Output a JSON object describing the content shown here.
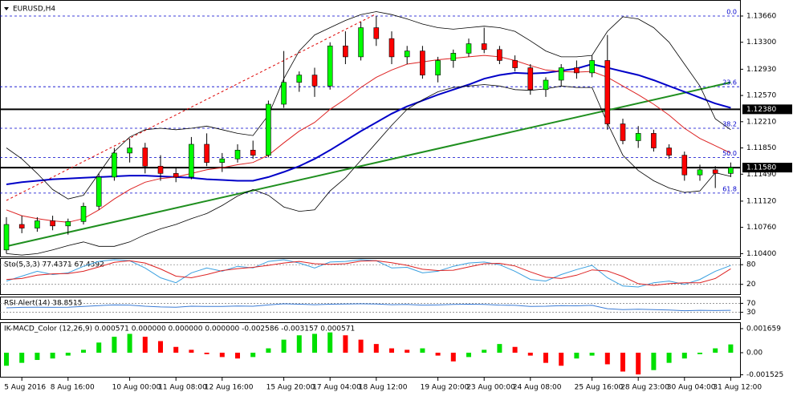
{
  "chart_data": [
    {
      "type": "candlestick",
      "title": "EURUSD,H4",
      "categories": [
        null,
        "5 Aug 2016",
        null,
        null,
        "8 Aug 16:00",
        null,
        null,
        null,
        "10 Aug 00:00",
        null,
        null,
        "11 Aug 08:00",
        null,
        null,
        "12 Aug 16:00",
        null,
        null,
        null,
        "15 Aug 20:00",
        null,
        null,
        "17 Aug 04:00",
        null,
        null,
        "18 Aug 12:00",
        null,
        null,
        null,
        "19 Aug 20:00",
        null,
        null,
        "23 Aug 00:00",
        null,
        null,
        "24 Aug 08:00",
        null,
        null,
        null,
        "25 Aug 16:00",
        null,
        null,
        "28 Aug 23:00",
        null,
        null,
        "30 Aug 04:00",
        null,
        null,
        "31 Aug 12:00"
      ],
      "open": [
        1.1045,
        1.108,
        1.1075,
        1.1085,
        1.1078,
        1.1084,
        1.1105,
        1.1145,
        1.1178,
        1.1185,
        1.116,
        1.115,
        1.1145,
        1.119,
        1.1165,
        1.117,
        1.1182,
        1.1175,
        1.1245,
        1.1275,
        1.1285,
        1.127,
        1.1325,
        1.131,
        1.135,
        1.1335,
        1.131,
        1.1318,
        1.1285,
        1.1305,
        1.1315,
        1.1328,
        1.132,
        1.1305,
        1.1295,
        1.1265,
        1.1278,
        1.1295,
        1.1288,
        1.1305,
        1.1218,
        1.1195,
        1.1205,
        1.1185,
        1.1175,
        1.1148,
        1.1155,
        1.115
      ],
      "high": [
        1.109,
        1.1092,
        1.109,
        1.1092,
        1.1088,
        1.111,
        1.115,
        1.1185,
        1.1198,
        1.1192,
        1.1175,
        1.1158,
        1.12,
        1.1205,
        1.1178,
        1.119,
        1.1195,
        1.125,
        1.1318,
        1.129,
        1.1295,
        1.133,
        1.1345,
        1.1358,
        1.1366,
        1.1345,
        1.1325,
        1.1325,
        1.131,
        1.132,
        1.1335,
        1.135,
        1.1325,
        1.1312,
        1.13,
        1.1282,
        1.13,
        1.1305,
        1.1312,
        1.134,
        1.1225,
        1.1215,
        1.121,
        1.119,
        1.118,
        1.1162,
        1.116,
        1.1165
      ],
      "low": [
        1.104,
        1.1068,
        1.107,
        1.1072,
        1.1066,
        1.108,
        1.11,
        1.114,
        1.1165,
        1.115,
        1.114,
        1.1138,
        1.1142,
        1.116,
        1.1152,
        1.1165,
        1.117,
        1.1172,
        1.124,
        1.1262,
        1.1255,
        1.1265,
        1.13,
        1.1305,
        1.1325,
        1.13,
        1.13,
        1.128,
        1.1275,
        1.1295,
        1.131,
        1.1315,
        1.13,
        1.129,
        1.1258,
        1.1255,
        1.127,
        1.128,
        1.1282,
        1.121,
        1.119,
        1.1185,
        1.118,
        1.117,
        1.114,
        1.114,
        1.113,
        1.1145
      ],
      "close": [
        1.108,
        1.1075,
        1.1085,
        1.1078,
        1.1084,
        1.1105,
        1.1145,
        1.1178,
        1.1185,
        1.116,
        1.115,
        1.1145,
        1.119,
        1.1165,
        1.117,
        1.1182,
        1.1175,
        1.1245,
        1.1275,
        1.1285,
        1.127,
        1.1325,
        1.131,
        1.135,
        1.1335,
        1.131,
        1.1318,
        1.1285,
        1.1305,
        1.1315,
        1.1328,
        1.132,
        1.1305,
        1.1295,
        1.1265,
        1.1278,
        1.1295,
        1.1288,
        1.1305,
        1.1218,
        1.1195,
        1.1205,
        1.1185,
        1.1175,
        1.1148,
        1.1155,
        1.115,
        1.1158
      ],
      "up_color": "#00ff00",
      "down_color": "#ff0000",
      "overlays": [
        {
          "color": "#0000c8",
          "width": 2,
          "values": [
            1.1135,
            1.1138,
            1.114,
            1.1142,
            1.1143,
            1.1144,
            1.1145,
            1.1146,
            1.1147,
            1.1147,
            1.1146,
            1.1145,
            1.1144,
            1.1142,
            1.1141,
            1.114,
            1.114,
            1.1145,
            1.1152,
            1.116,
            1.117,
            1.1182,
            1.1195,
            1.1208,
            1.122,
            1.1232,
            1.1242,
            1.125,
            1.1258,
            1.1265,
            1.1272,
            1.128,
            1.1285,
            1.1288,
            1.1287,
            1.1288,
            1.1291,
            1.1294,
            1.13,
            1.1295,
            1.129,
            1.1285,
            1.1278,
            1.127,
            1.1262,
            1.1254,
            1.1246,
            1.124
          ]
        },
        {
          "color": "#dd2222",
          "width": 1,
          "values": [
            1.11,
            1.1092,
            1.1088,
            1.1085,
            1.1083,
            1.1088,
            1.11,
            1.1115,
            1.1128,
            1.1138,
            1.1143,
            1.1145,
            1.115,
            1.1155,
            1.1158,
            1.1162,
            1.1165,
            1.1175,
            1.1192,
            1.1208,
            1.122,
            1.1238,
            1.1252,
            1.1268,
            1.1282,
            1.1292,
            1.13,
            1.1303,
            1.1306,
            1.1308,
            1.131,
            1.1312,
            1.131,
            1.1305,
            1.1298,
            1.1292,
            1.129,
            1.1289,
            1.129,
            1.1282,
            1.127,
            1.1258,
            1.1245,
            1.123,
            1.1212,
            1.1198,
            1.1188,
            1.1178
          ]
        },
        {
          "color": "#000000",
          "width": 0.8,
          "values": [
            1.1185,
            1.117,
            1.115,
            1.1128,
            1.1115,
            1.112,
            1.115,
            1.118,
            1.12,
            1.121,
            1.1212,
            1.121,
            1.1212,
            1.1215,
            1.121,
            1.1205,
            1.1202,
            1.123,
            1.128,
            1.1318,
            1.134,
            1.135,
            1.136,
            1.1368,
            1.1372,
            1.1368,
            1.1362,
            1.1355,
            1.135,
            1.1348,
            1.135,
            1.1352,
            1.135,
            1.1345,
            1.1332,
            1.1318,
            1.131,
            1.131,
            1.1312,
            1.1345,
            1.1365,
            1.1362,
            1.135,
            1.133,
            1.13,
            1.127,
            1.1225,
            1.121
          ]
        },
        {
          "color": "#000000",
          "width": 0.8,
          "values": [
            1.104,
            1.1038,
            1.104,
            1.1045,
            1.1051,
            1.1056,
            1.105,
            1.105,
            1.1056,
            1.1066,
            1.1074,
            1.108,
            1.1088,
            1.1095,
            1.1106,
            1.1119,
            1.1128,
            1.112,
            1.1104,
            1.1098,
            1.11,
            1.1126,
            1.1144,
            1.1168,
            1.1192,
            1.1216,
            1.1238,
            1.1251,
            1.1262,
            1.1268,
            1.127,
            1.1272,
            1.127,
            1.1265,
            1.1264,
            1.1266,
            1.127,
            1.1268,
            1.1268,
            1.1219,
            1.1175,
            1.1154,
            1.114,
            1.113,
            1.1124,
            1.1126,
            1.1151,
            1.1146
          ]
        }
      ],
      "trendlines": [
        {
          "color": "#1f8f1f",
          "from": 0,
          "to": 47,
          "values": [
            1.105,
            1.1275
          ]
        },
        {
          "color": "#dd0000",
          "dashed": true,
          "from": 0,
          "to": 24,
          "values": [
            1.1113,
            1.1369
          ]
        }
      ],
      "fibonacci": {
        "color": "#0000cc",
        "levels": [
          {
            "value": 1.1366,
            "label": "0.0"
          },
          {
            "value": 1.1269,
            "label": "23.6"
          },
          {
            "value": 1.1212,
            "label": "38.2"
          },
          {
            "value": 1.1172,
            "label": "50.0"
          },
          {
            "value": 1.1123,
            "label": "61.8"
          }
        ]
      },
      "levels": [
        {
          "value": 1.1238,
          "label": "1.12380"
        },
        {
          "value": 1.1158,
          "label": "1.11580"
        }
      ],
      "ylim": [
        1.1036,
        1.1388
      ],
      "yticks": [
        {
          "value": 1.1366,
          "label": "1.13660"
        },
        {
          "value": 1.133,
          "label": "1.13300"
        },
        {
          "value": 1.1293,
          "label": "1.12930"
        },
        {
          "value": 1.1257,
          "label": "1.12570"
        },
        {
          "value": 1.1221,
          "label": "1.12210"
        },
        {
          "value": 1.1185,
          "label": "1.11850"
        },
        {
          "value": 1.1149,
          "label": "1.11490"
        },
        {
          "value": 1.1112,
          "label": "1.11120"
        },
        {
          "value": 1.1076,
          "label": "1.10760"
        },
        {
          "value": 1.104,
          "label": "1.10400"
        }
      ],
      "grid": false
    },
    {
      "type": "line",
      "title": "Sto(5,3,3) 77.4371 67.4392",
      "series": [
        {
          "color": "#3aa0e0",
          "values": [
            30,
            45,
            60,
            50,
            55,
            75,
            90,
            95,
            92,
            70,
            40,
            25,
            55,
            70,
            60,
            75,
            70,
            90,
            95,
            85,
            70,
            88,
            90,
            95,
            92,
            70,
            72,
            55,
            60,
            75,
            85,
            88,
            80,
            60,
            35,
            30,
            50,
            65,
            78,
            40,
            15,
            12,
            25,
            30,
            20,
            35,
            60,
            77.4371
          ]
        },
        {
          "color": "#dd2222",
          "values": [
            35,
            38,
            48,
            52,
            53,
            60,
            73,
            87,
            92,
            85,
            67,
            45,
            40,
            50,
            62,
            68,
            72,
            78,
            85,
            90,
            83,
            81,
            83,
            91,
            92,
            86,
            78,
            66,
            62,
            63,
            73,
            83,
            84,
            76,
            58,
            42,
            38,
            48,
            64,
            61,
            44,
            22,
            17,
            22,
            25,
            25,
            38,
            67.4392
          ]
        }
      ],
      "ylim": [
        -10,
        100
      ],
      "yticks": [
        20,
        80
      ],
      "grid": true
    },
    {
      "type": "line",
      "title": "RSI Alert(14) 38.8515",
      "series": [
        {
          "color": "#3a7bd5",
          "values": [
            50,
            52,
            53,
            52,
            53,
            56,
            60,
            63,
            62,
            57,
            54,
            53,
            57,
            56,
            56,
            58,
            57,
            63,
            68,
            66,
            64,
            66,
            67,
            68,
            67,
            64,
            65,
            62,
            63,
            65,
            66,
            65,
            62,
            61,
            56,
            57,
            60,
            59,
            61,
            46,
            42,
            44,
            42,
            40,
            37,
            39,
            38,
            38.8515
          ]
        }
      ],
      "ylim": [
        0,
        100
      ],
      "yticks": [
        30,
        70
      ],
      "grid": true
    },
    {
      "type": "bar",
      "title": "IK-MACD_Color (12,26,9) 0.000571 0.000000 0.000000 0.000000 -0.002586 -0.003157 0.000571",
      "values": [
        -0.0009,
        -0.0007,
        -0.0005,
        -0.0004,
        -0.0002,
        0.0002,
        0.0007,
        0.0011,
        0.0013,
        0.0011,
        0.0008,
        0.0004,
        0.0002,
        -0.0001,
        -0.0003,
        -0.0004,
        -0.0003,
        0.0003,
        0.0009,
        0.0012,
        0.0013,
        0.0014,
        0.0012,
        0.0009,
        0.0006,
        0.0003,
        0.0002,
        0.0003,
        -0.0002,
        -0.0006,
        -0.0003,
        0.0002,
        0.0006,
        0.0004,
        -0.0002,
        -0.0007,
        -0.0009,
        -0.0004,
        -0.0002,
        -0.0008,
        -0.0013,
        -0.0015,
        -0.0012,
        -0.0007,
        -0.0004,
        -0.0001,
        0.0003,
        0.000571
      ],
      "up_color": "#00e000",
      "down_color": "#ff0000",
      "ylim": [
        -0.00166,
        0.0021
      ],
      "yticks": [
        0.001659,
        {
          "value": 0,
          "label": "0.00"
        },
        -0.001525
      ],
      "grid": false
    }
  ]
}
